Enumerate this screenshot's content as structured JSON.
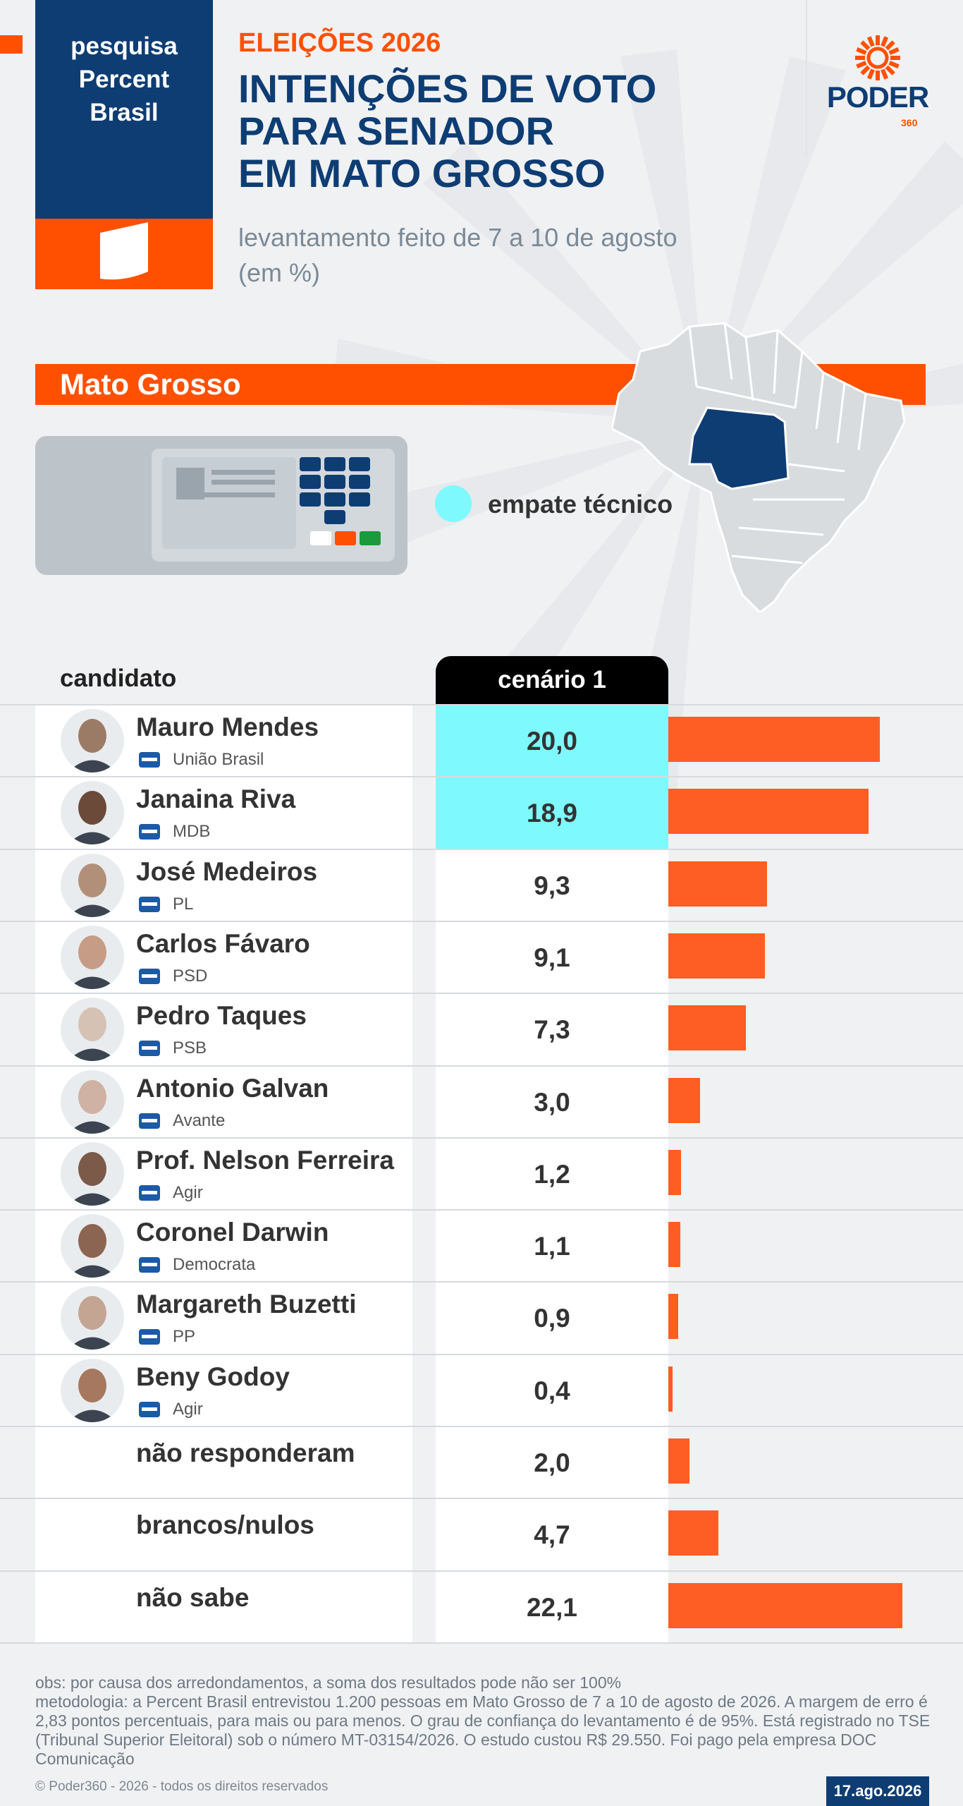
{
  "header": {
    "pesquisa_line1": "pesquisa",
    "pesquisa_line2": "Percent",
    "pesquisa_line3": "Brasil",
    "eyebrow": "ELEIÇÕES 2026",
    "title_line1": "INTENÇÕES DE VOTO",
    "title_line2": "PARA SENADOR",
    "title_line3": "EM MATO GROSSO",
    "subtitle_line1": "levantamento feito de 7 a 10 de agosto",
    "subtitle_line2": "(em %)",
    "logo_text": "PODER",
    "logo_sub": "360"
  },
  "state": {
    "name": "Mato Grosso",
    "legend_label": "empate técnico"
  },
  "colors": {
    "navy": "#0e3d73",
    "orange": "#fe5000",
    "bar": "#fe5d23",
    "tie": "#7ef9fd"
  },
  "chart_data": {
    "type": "bar",
    "column_header_candidate": "candidato",
    "column_header_scenario": "cenário 1",
    "ylim": [
      0,
      25
    ],
    "rows": [
      {
        "name": "Mauro Mendes",
        "party": "União Brasil",
        "value": 20.0,
        "value_label": "20,0",
        "tie": true,
        "party_icon": "uniao-brasil-logo"
      },
      {
        "name": "Janaina Riva",
        "party": "MDB",
        "value": 18.9,
        "value_label": "18,9",
        "tie": true,
        "party_icon": "mdb-logo"
      },
      {
        "name": "José Medeiros",
        "party": "PL",
        "value": 9.3,
        "value_label": "9,3",
        "tie": false,
        "party_icon": "pl-logo"
      },
      {
        "name": "Carlos Fávaro",
        "party": "PSD",
        "value": 9.1,
        "value_label": "9,1",
        "tie": false,
        "party_icon": "psd-logo"
      },
      {
        "name": "Pedro Taques",
        "party": "PSB",
        "value": 7.3,
        "value_label": "7,3",
        "tie": false,
        "party_icon": "psb-logo"
      },
      {
        "name": "Antonio Galvan",
        "party": "Avante",
        "value": 3.0,
        "value_label": "3,0",
        "tie": false,
        "party_icon": "avante-logo"
      },
      {
        "name": "Prof. Nelson Ferreira",
        "party": "Agir",
        "value": 1.2,
        "value_label": "1,2",
        "tie": false,
        "party_icon": "agir-logo"
      },
      {
        "name": "Coronel Darwin",
        "party": "Democrata",
        "value": 1.1,
        "value_label": "1,1",
        "tie": false,
        "party_icon": "democrata-logo"
      },
      {
        "name": "Margareth Buzetti",
        "party": "PP",
        "value": 0.9,
        "value_label": "0,9",
        "tie": false,
        "party_icon": "pp-logo"
      },
      {
        "name": "Beny Godoy",
        "party": "Agir",
        "value": 0.4,
        "value_label": "0,4",
        "tie": false,
        "party_icon": "agir-logo"
      },
      {
        "name": "não responderam",
        "party": "",
        "value": 2.0,
        "value_label": "2,0",
        "tie": false,
        "party_icon": ""
      },
      {
        "name": "brancos/nulos",
        "party": "",
        "value": 4.7,
        "value_label": "4,7",
        "tie": false,
        "party_icon": ""
      },
      {
        "name": "não sabe",
        "party": "",
        "value": 22.1,
        "value_label": "22,1",
        "tie": false,
        "party_icon": ""
      }
    ]
  },
  "footer": {
    "obs_line1": "obs: por causa dos arredondamentos, a soma dos resultados pode não ser 100%",
    "obs_line2": "metodologia: a Percent Brasil entrevistou 1.200 pessoas em Mato Grosso de 7 a 10 de agosto de 2026. A margem de erro é 2,83 pontos percentuais, para mais ou para menos. O grau de confiança do levantamento é de 95%. Está registrado no TSE (Tribunal Superior Eleitoral) sob o número MT-03154/2026. O estudo custou R$ 29.550. Foi pago pela empresa DOC Comunicação",
    "copyright": "© Poder360 - 2026 - todos os direitos reservados",
    "date": "17.ago.2026"
  }
}
